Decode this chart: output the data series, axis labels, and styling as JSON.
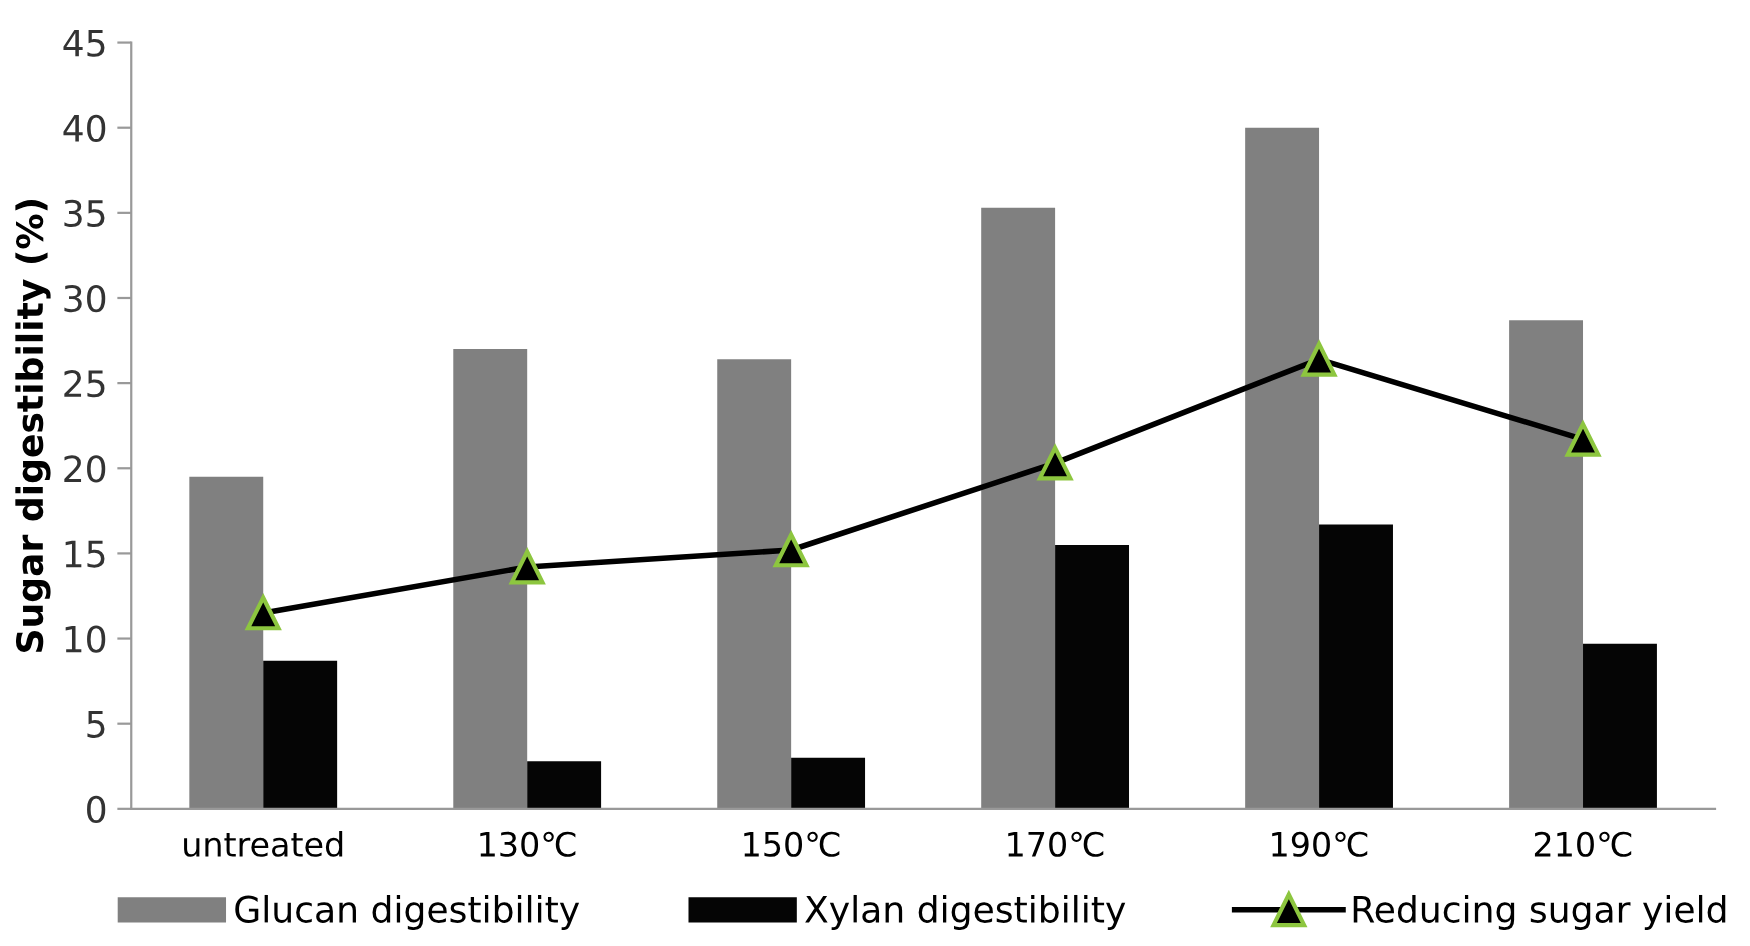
{
  "chart_data": {
    "type": "bar",
    "ylabel": "Sugar digestibility (%)",
    "categories": [
      "untreated",
      "130℃",
      "150℃",
      "170℃",
      "190℃",
      "210℃"
    ],
    "series": [
      {
        "name": "Glucan digestibility",
        "color": "#808080",
        "values": [
          19.5,
          27.0,
          26.4,
          35.3,
          40.0,
          28.7
        ]
      },
      {
        "name": "Xylan digestibility",
        "color": "#050505",
        "values": [
          8.7,
          2.8,
          3.0,
          15.5,
          16.7,
          9.7
        ]
      },
      {
        "name": "Reducing sugar yield",
        "type": "line",
        "color": "#000000",
        "marker": "triangle",
        "values": [
          11.5,
          14.2,
          15.2,
          20.3,
          26.4,
          21.7
        ]
      }
    ],
    "ylim": [
      0,
      45
    ],
    "yticks": [
      0,
      5,
      10,
      15,
      20,
      25,
      30,
      35,
      40,
      45
    ],
    "grid": false,
    "legend": "bottom"
  }
}
